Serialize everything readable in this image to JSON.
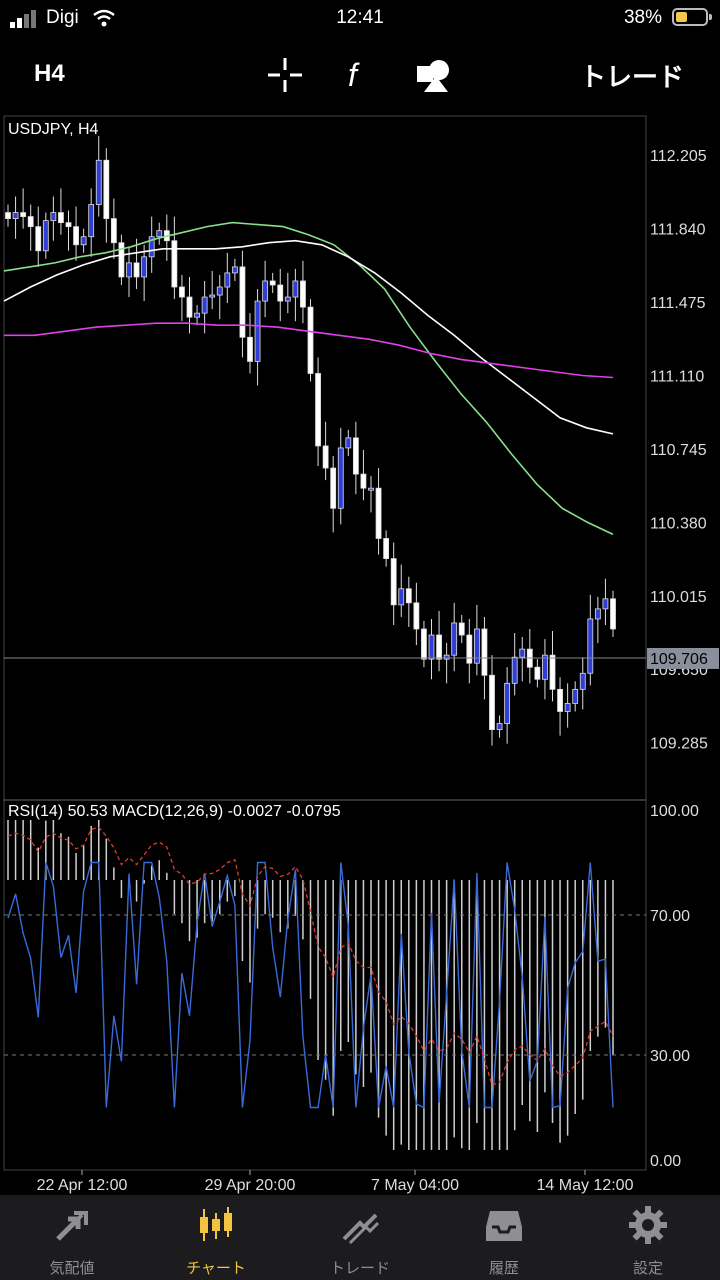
{
  "status_bar": {
    "carrier": "Digi",
    "time": "12:41",
    "battery_percent": "38%"
  },
  "toolbar": {
    "timeframe": "H4",
    "trade_label": "トレード",
    "icons": [
      "crosshair-icon",
      "indicators-f-icon",
      "objects-shapes-icon"
    ]
  },
  "chart": {
    "symbol_label": "USDJPY, H4",
    "current_price": "109.706",
    "price_ticks": [
      "112.205",
      "111.840",
      "111.475",
      "111.110",
      "110.745",
      "110.380",
      "110.015",
      "109.650",
      "109.285"
    ],
    "indicator_label": "RSI(14) 50.53 MACD(12,26,9) -0.0027 -0.0795",
    "indicator_ticks": [
      "100.00",
      "70.00",
      "30.00",
      "0.00"
    ],
    "time_ticks": [
      "22 Apr 12:00",
      "29 Apr 20:00",
      "7 May 04:00",
      "14 May 12:00"
    ],
    "colors": {
      "up_candle": "#2f3fd6",
      "down_candle": "#ffffff",
      "ma_fast": "#88e08a",
      "ma_mid": "#ffffff",
      "ma_slow": "#e040e8",
      "rsi": "#3a6ad8",
      "signal": "#e03a2a"
    }
  },
  "chart_data": {
    "type": "line",
    "title": "USDJPY, H4",
    "ylim": [
      109.0,
      112.4
    ],
    "series": [
      {
        "name": "USDJPY",
        "values": [
          111.89,
          111.92,
          111.9,
          111.85,
          111.73,
          111.88,
          111.92,
          111.87,
          111.85,
          111.76,
          111.8,
          111.96,
          112.18,
          111.89,
          111.77,
          111.6,
          111.67,
          111.6,
          111.7,
          111.8,
          111.83,
          111.78,
          111.55,
          111.5,
          111.4,
          111.42,
          111.5,
          111.51,
          111.55,
          111.62,
          111.65,
          111.3,
          111.18,
          111.48,
          111.58,
          111.56,
          111.48,
          111.5,
          111.58,
          111.45,
          111.12,
          110.76,
          110.65,
          110.45,
          110.75,
          110.8,
          110.62,
          110.55,
          110.55,
          110.3,
          110.2,
          109.97,
          110.05,
          109.98,
          109.85,
          109.7,
          109.82,
          109.7,
          109.72,
          109.88,
          109.82,
          109.68,
          109.85,
          109.62,
          109.35,
          109.38,
          109.58,
          109.71,
          109.75,
          109.66,
          109.6,
          109.72,
          109.55,
          109.44,
          109.48,
          109.55,
          109.63,
          109.9,
          109.95,
          110.0,
          109.85
        ]
      },
      {
        "name": "",
        "values": [
          111.63,
          111.65,
          111.67,
          111.7,
          111.72,
          111.75,
          111.79,
          111.82,
          111.85,
          111.87,
          111.86,
          111.85,
          111.81,
          111.76,
          111.66,
          111.54,
          111.35,
          111.18,
          111.02,
          110.88,
          110.72,
          110.57,
          110.45,
          110.38,
          110.32
        ]
      },
      {
        "name": "",
        "values": [
          111.48,
          111.55,
          111.61,
          111.66,
          111.7,
          111.72,
          111.74,
          111.74,
          111.74,
          111.75,
          111.77,
          111.78,
          111.76,
          111.7,
          111.62,
          111.52,
          111.41,
          111.31,
          111.2,
          111.1,
          111.0,
          110.9,
          110.85,
          110.82
        ]
      },
      {
        "name": "",
        "values": [
          111.31,
          111.31,
          111.33,
          111.35,
          111.36,
          111.37,
          111.37,
          111.36,
          111.36,
          111.35,
          111.33,
          111.31,
          111.29,
          111.26,
          111.22,
          111.19,
          111.17,
          111.15,
          111.13,
          111.11,
          111.1
        ]
      }
    ]
  },
  "tabs": [
    {
      "label": "気配値",
      "icon": "quotes-arrows-icon"
    },
    {
      "label": "チャート",
      "icon": "chart-candles-icon",
      "active": true
    },
    {
      "label": "トレード",
      "icon": "trade-trend-icon"
    },
    {
      "label": "履歴",
      "icon": "history-tray-icon"
    },
    {
      "label": "設定",
      "icon": "settings-gear-icon"
    }
  ]
}
